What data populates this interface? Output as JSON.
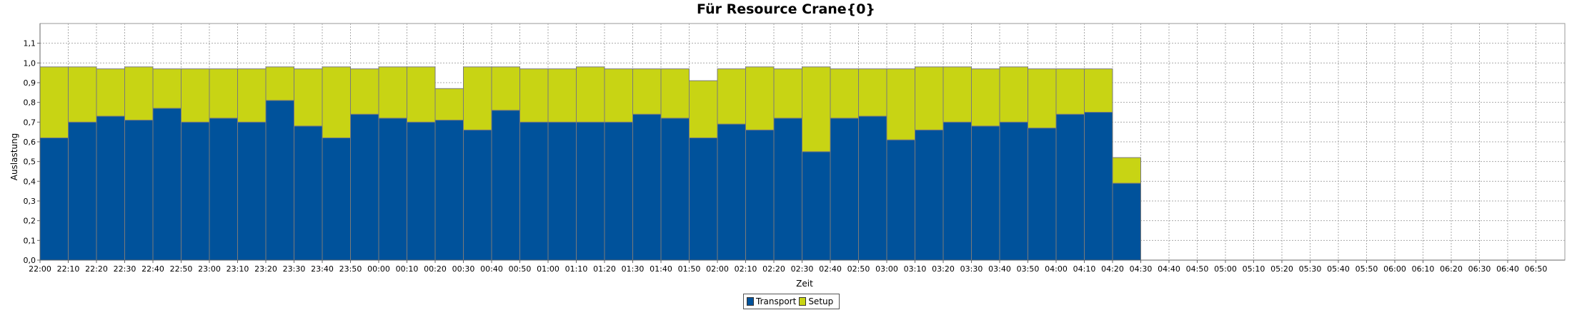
{
  "chart_data": {
    "type": "bar",
    "stacked": true,
    "title": "Für Resource Crane{0}",
    "xlabel": "Zeit",
    "ylabel": "Auslastung",
    "ylim": [
      0,
      1.2
    ],
    "yticks": [
      "0,0",
      "0,1",
      "0,2",
      "0,3",
      "0,4",
      "0,5",
      "0,6",
      "0,7",
      "0,8",
      "0,9",
      "1,0",
      "1,1"
    ],
    "grid": true,
    "legend_position": "bottom-center",
    "xticks": [
      "22:00",
      "22:10",
      "22:20",
      "22:30",
      "22:40",
      "22:50",
      "23:00",
      "23:10",
      "23:20",
      "23:30",
      "23:40",
      "23:50",
      "00:00",
      "00:10",
      "00:20",
      "00:30",
      "00:40",
      "00:50",
      "01:00",
      "01:10",
      "01:20",
      "01:30",
      "01:40",
      "01:50",
      "02:00",
      "02:10",
      "02:20",
      "02:30",
      "02:40",
      "02:50",
      "03:00",
      "03:10",
      "03:20",
      "03:30",
      "03:40",
      "03:50",
      "04:00",
      "04:10",
      "04:20",
      "04:30",
      "04:40",
      "04:50",
      "05:00",
      "05:10",
      "05:20",
      "05:30",
      "05:40",
      "05:50",
      "06:00",
      "06:10",
      "06:20",
      "06:30",
      "06:40",
      "06:50"
    ],
    "categories": [
      "22:00",
      "22:10",
      "22:20",
      "22:30",
      "22:40",
      "22:50",
      "23:00",
      "23:10",
      "23:20",
      "23:30",
      "23:40",
      "23:50",
      "00:00",
      "00:10",
      "00:20",
      "00:30",
      "00:40",
      "00:50",
      "01:00",
      "01:10",
      "01:20",
      "01:30",
      "01:40",
      "01:50",
      "02:00",
      "02:10",
      "02:20",
      "02:30",
      "02:40",
      "02:50",
      "03:00",
      "03:10",
      "03:20",
      "03:30",
      "03:40",
      "03:50",
      "04:00",
      "04:10",
      "04:20"
    ],
    "series": [
      {
        "name": "Transport",
        "color": "#00529B",
        "values": [
          0.62,
          0.7,
          0.73,
          0.71,
          0.77,
          0.7,
          0.72,
          0.7,
          0.81,
          0.68,
          0.62,
          0.74,
          0.72,
          0.7,
          0.71,
          0.66,
          0.76,
          0.7,
          0.7,
          0.7,
          0.7,
          0.74,
          0.72,
          0.62,
          0.69,
          0.66,
          0.72,
          0.55,
          0.72,
          0.73,
          0.61,
          0.66,
          0.7,
          0.68,
          0.7,
          0.67,
          0.74,
          0.75,
          0.39
        ]
      },
      {
        "name": "Setup",
        "color": "#C8D414",
        "values": [
          0.36,
          0.28,
          0.24,
          0.27,
          0.2,
          0.27,
          0.25,
          0.27,
          0.17,
          0.29,
          0.36,
          0.23,
          0.26,
          0.28,
          0.16,
          0.32,
          0.22,
          0.27,
          0.27,
          0.28,
          0.27,
          0.23,
          0.25,
          0.29,
          0.28,
          0.32,
          0.25,
          0.43,
          0.25,
          0.24,
          0.36,
          0.32,
          0.28,
          0.29,
          0.28,
          0.3,
          0.23,
          0.22,
          0.13
        ]
      }
    ]
  }
}
